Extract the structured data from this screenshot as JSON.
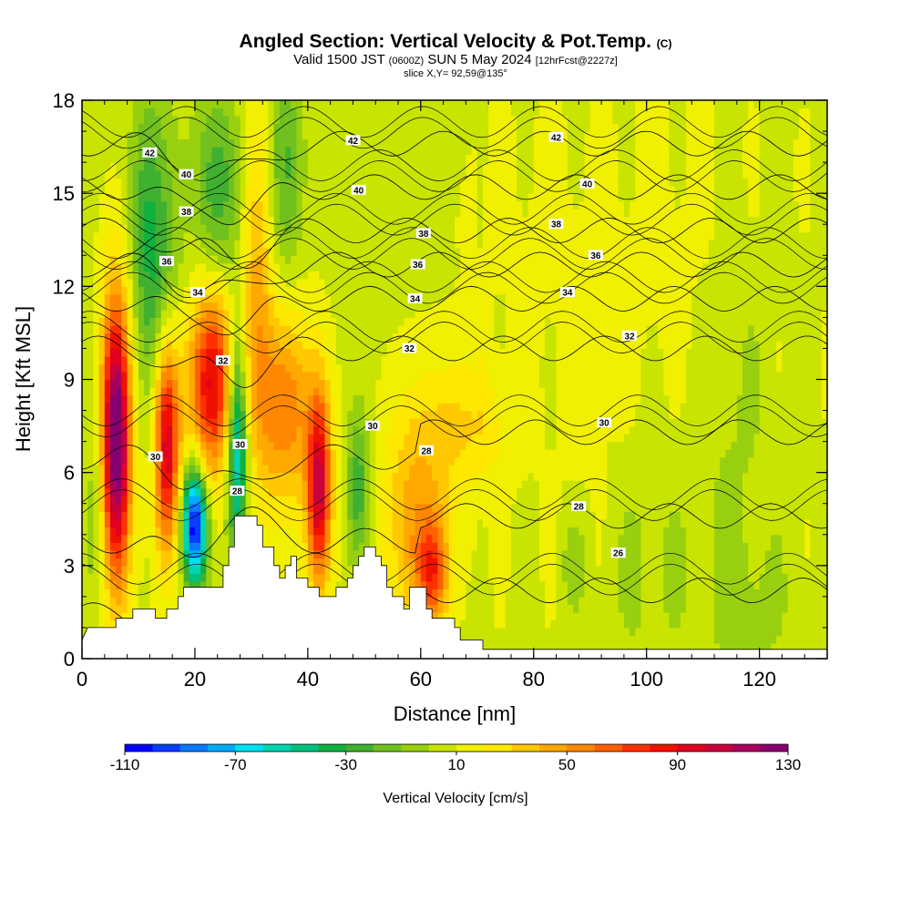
{
  "chart_data": {
    "type": "contour",
    "title": "Angled Section: Vertical Velocity & Pot.Temp.",
    "title_suffix": "(C)",
    "subtitle_valid": "Valid 1500 JST",
    "subtitle_zulu": "(0600Z)",
    "subtitle_date": "SUN 5 May 2024",
    "subtitle_fcst": "[12hrFcst@2227z]",
    "slice_info": "slice X,Y= 92,59@135°",
    "xlabel": "Distance [nm]",
    "ylabel": "Height [Kft MSL]",
    "xlim": [
      0,
      132
    ],
    "ylim": [
      0,
      18
    ],
    "x_ticks": [
      0,
      20,
      40,
      60,
      80,
      100,
      120
    ],
    "y_ticks": [
      0,
      3,
      6,
      9,
      12,
      15,
      18
    ],
    "colorbar": {
      "label": "Vertical Velocity [cm/s]",
      "tick_values": [
        -110,
        -70,
        -30,
        10,
        50,
        90,
        130
      ],
      "levels": [
        -110,
        -100,
        -90,
        -80,
        -70,
        -60,
        -50,
        -40,
        -30,
        -20,
        -10,
        0,
        10,
        20,
        30,
        40,
        50,
        60,
        70,
        80,
        90,
        100,
        110,
        120,
        130
      ],
      "colors": [
        "#0000ff",
        "#0a3cff",
        "#0a78ff",
        "#00aaff",
        "#00e0f0",
        "#00d4b0",
        "#00c080",
        "#10b040",
        "#40b030",
        "#70c020",
        "#98d010",
        "#c8e400",
        "#f0f000",
        "#ffe800",
        "#ffc800",
        "#ffa800",
        "#ff8800",
        "#ff6000",
        "#ff3000",
        "#f01000",
        "#e00020",
        "#c8003c",
        "#a8005c",
        "#880070"
      ]
    },
    "terrain_kft": [
      [
        0,
        0.6
      ],
      [
        1,
        1.0
      ],
      [
        6,
        1.0
      ],
      [
        6,
        1.3
      ],
      [
        9,
        1.3
      ],
      [
        9,
        1.6
      ],
      [
        13,
        1.6
      ],
      [
        13,
        1.3
      ],
      [
        15,
        1.3
      ],
      [
        15,
        1.6
      ],
      [
        17,
        1.6
      ],
      [
        17,
        2.0
      ],
      [
        18,
        2.0
      ],
      [
        18,
        2.3
      ],
      [
        25,
        2.3
      ],
      [
        25,
        3.0
      ],
      [
        26,
        3.0
      ],
      [
        26,
        3.6
      ],
      [
        27,
        3.6
      ],
      [
        27,
        4.6
      ],
      [
        31,
        4.6
      ],
      [
        31,
        4.3
      ],
      [
        32,
        4.3
      ],
      [
        32,
        3.6
      ],
      [
        34,
        3.6
      ],
      [
        34,
        3.0
      ],
      [
        35,
        3.0
      ],
      [
        35,
        2.6
      ],
      [
        36,
        2.6
      ],
      [
        36,
        3.0
      ],
      [
        37,
        3.0
      ],
      [
        37,
        3.3
      ],
      [
        38,
        3.3
      ],
      [
        38,
        2.6
      ],
      [
        40,
        2.6
      ],
      [
        40,
        2.3
      ],
      [
        42,
        2.3
      ],
      [
        42,
        2.0
      ],
      [
        45,
        2.0
      ],
      [
        45,
        2.3
      ],
      [
        47,
        2.3
      ],
      [
        47,
        2.6
      ],
      [
        48,
        2.6
      ],
      [
        48,
        3.0
      ],
      [
        49,
        3.0
      ],
      [
        49,
        3.3
      ],
      [
        50,
        3.3
      ],
      [
        50,
        3.6
      ],
      [
        52,
        3.6
      ],
      [
        52,
        3.3
      ],
      [
        53,
        3.3
      ],
      [
        53,
        3.0
      ],
      [
        54,
        3.0
      ],
      [
        54,
        2.3
      ],
      [
        55,
        2.3
      ],
      [
        55,
        2.0
      ],
      [
        57,
        2.0
      ],
      [
        57,
        1.6
      ],
      [
        58,
        1.6
      ],
      [
        58,
        2.3
      ],
      [
        61,
        2.3
      ],
      [
        61,
        1.6
      ],
      [
        62,
        1.6
      ],
      [
        62,
        1.3
      ],
      [
        66,
        1.3
      ],
      [
        66,
        1.0
      ],
      [
        67,
        1.0
      ],
      [
        67,
        0.6
      ],
      [
        71,
        0.6
      ],
      [
        71,
        0.3
      ],
      [
        132,
        0.3
      ]
    ],
    "theta_isolines_C": [
      26,
      28,
      30,
      32,
      34,
      36,
      38,
      40,
      42
    ],
    "labels": [
      {
        "text": "42",
        "x": 12,
        "y": 16.3
      },
      {
        "text": "40",
        "x": 18.5,
        "y": 15.6
      },
      {
        "text": "38",
        "x": 18.5,
        "y": 14.4
      },
      {
        "text": "36",
        "x": 15,
        "y": 12.8
      },
      {
        "text": "34",
        "x": 20.5,
        "y": 11.8
      },
      {
        "text": "32",
        "x": 25,
        "y": 9.6
      },
      {
        "text": "30",
        "x": 13,
        "y": 6.5
      },
      {
        "text": "30",
        "x": 28,
        "y": 6.9
      },
      {
        "text": "28",
        "x": 27.5,
        "y": 5.4
      },
      {
        "text": "42",
        "x": 48,
        "y": 16.7
      },
      {
        "text": "40",
        "x": 49,
        "y": 15.1
      },
      {
        "text": "38",
        "x": 60.5,
        "y": 13.7
      },
      {
        "text": "36",
        "x": 59.5,
        "y": 12.7
      },
      {
        "text": "34",
        "x": 59,
        "y": 11.6
      },
      {
        "text": "32",
        "x": 58,
        "y": 10.0
      },
      {
        "text": "30",
        "x": 51.5,
        "y": 7.5
      },
      {
        "text": "28",
        "x": 61,
        "y": 6.7
      },
      {
        "text": "42",
        "x": 84,
        "y": 16.8
      },
      {
        "text": "40",
        "x": 89.5,
        "y": 15.3
      },
      {
        "text": "38",
        "x": 84,
        "y": 14.0
      },
      {
        "text": "36",
        "x": 91,
        "y": 13.0
      },
      {
        "text": "34",
        "x": 86,
        "y": 11.8
      },
      {
        "text": "32",
        "x": 97,
        "y": 10.4
      },
      {
        "text": "30",
        "x": 92.5,
        "y": 7.6
      },
      {
        "text": "28",
        "x": 88,
        "y": 4.9
      },
      {
        "text": "26",
        "x": 95,
        "y": 3.4
      }
    ]
  }
}
